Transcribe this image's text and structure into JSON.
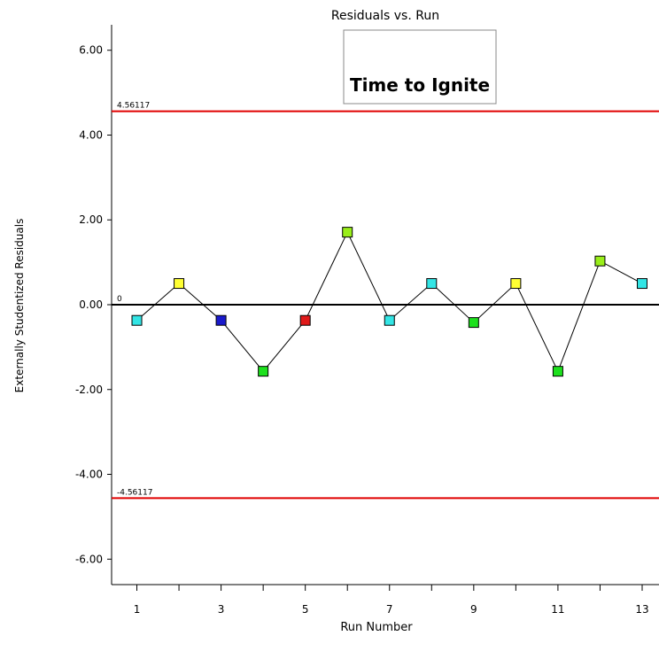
{
  "chart_data": {
    "type": "line",
    "title": "Residuals vs. Run",
    "annotation": "Time to Ignite",
    "xlabel": "Run Number",
    "ylabel": "Externally Studentized Residuals",
    "xlim": [
      0.4,
      13.4
    ],
    "ylim": [
      -6.6,
      6.6
    ],
    "x_ticks": [
      1,
      3,
      5,
      7,
      9,
      11,
      13
    ],
    "x_tick_labels": [
      "1",
      "3",
      "5",
      "7",
      "9",
      "11",
      "13"
    ],
    "y_ticks": [
      6,
      4,
      2,
      0,
      -2,
      -4,
      -6
    ],
    "y_tick_labels": [
      "6.00",
      "4.00",
      "2.00",
      "0.00",
      "-2.00",
      "-4.00",
      "-6.00"
    ],
    "reference_lines": [
      {
        "label": "4.56117",
        "value": 4.56117,
        "color": "#e00000"
      },
      {
        "label": "0",
        "value": 0,
        "color": "#000000"
      },
      {
        "label": "-4.56117",
        "value": -4.56117,
        "color": "#e00000"
      }
    ],
    "series": [
      {
        "x": [
          1,
          2,
          3,
          4,
          5,
          6,
          7,
          8,
          9,
          10,
          11,
          12,
          13
        ],
        "y": [
          -0.37,
          0.5,
          -0.37,
          -1.57,
          -0.37,
          1.71,
          -0.37,
          0.5,
          -0.42,
          0.5,
          -1.57,
          1.03,
          0.5
        ],
        "colors": [
          "#33e5e5",
          "#ffff33",
          "#1a1acc",
          "#1de01d",
          "#e01a1a",
          "#99ee1a",
          "#33e5e5",
          "#33e5e5",
          "#1de01d",
          "#ffff33",
          "#1de01d",
          "#99ee1a",
          "#33e5e5"
        ]
      }
    ],
    "grid": false,
    "legend": false
  }
}
